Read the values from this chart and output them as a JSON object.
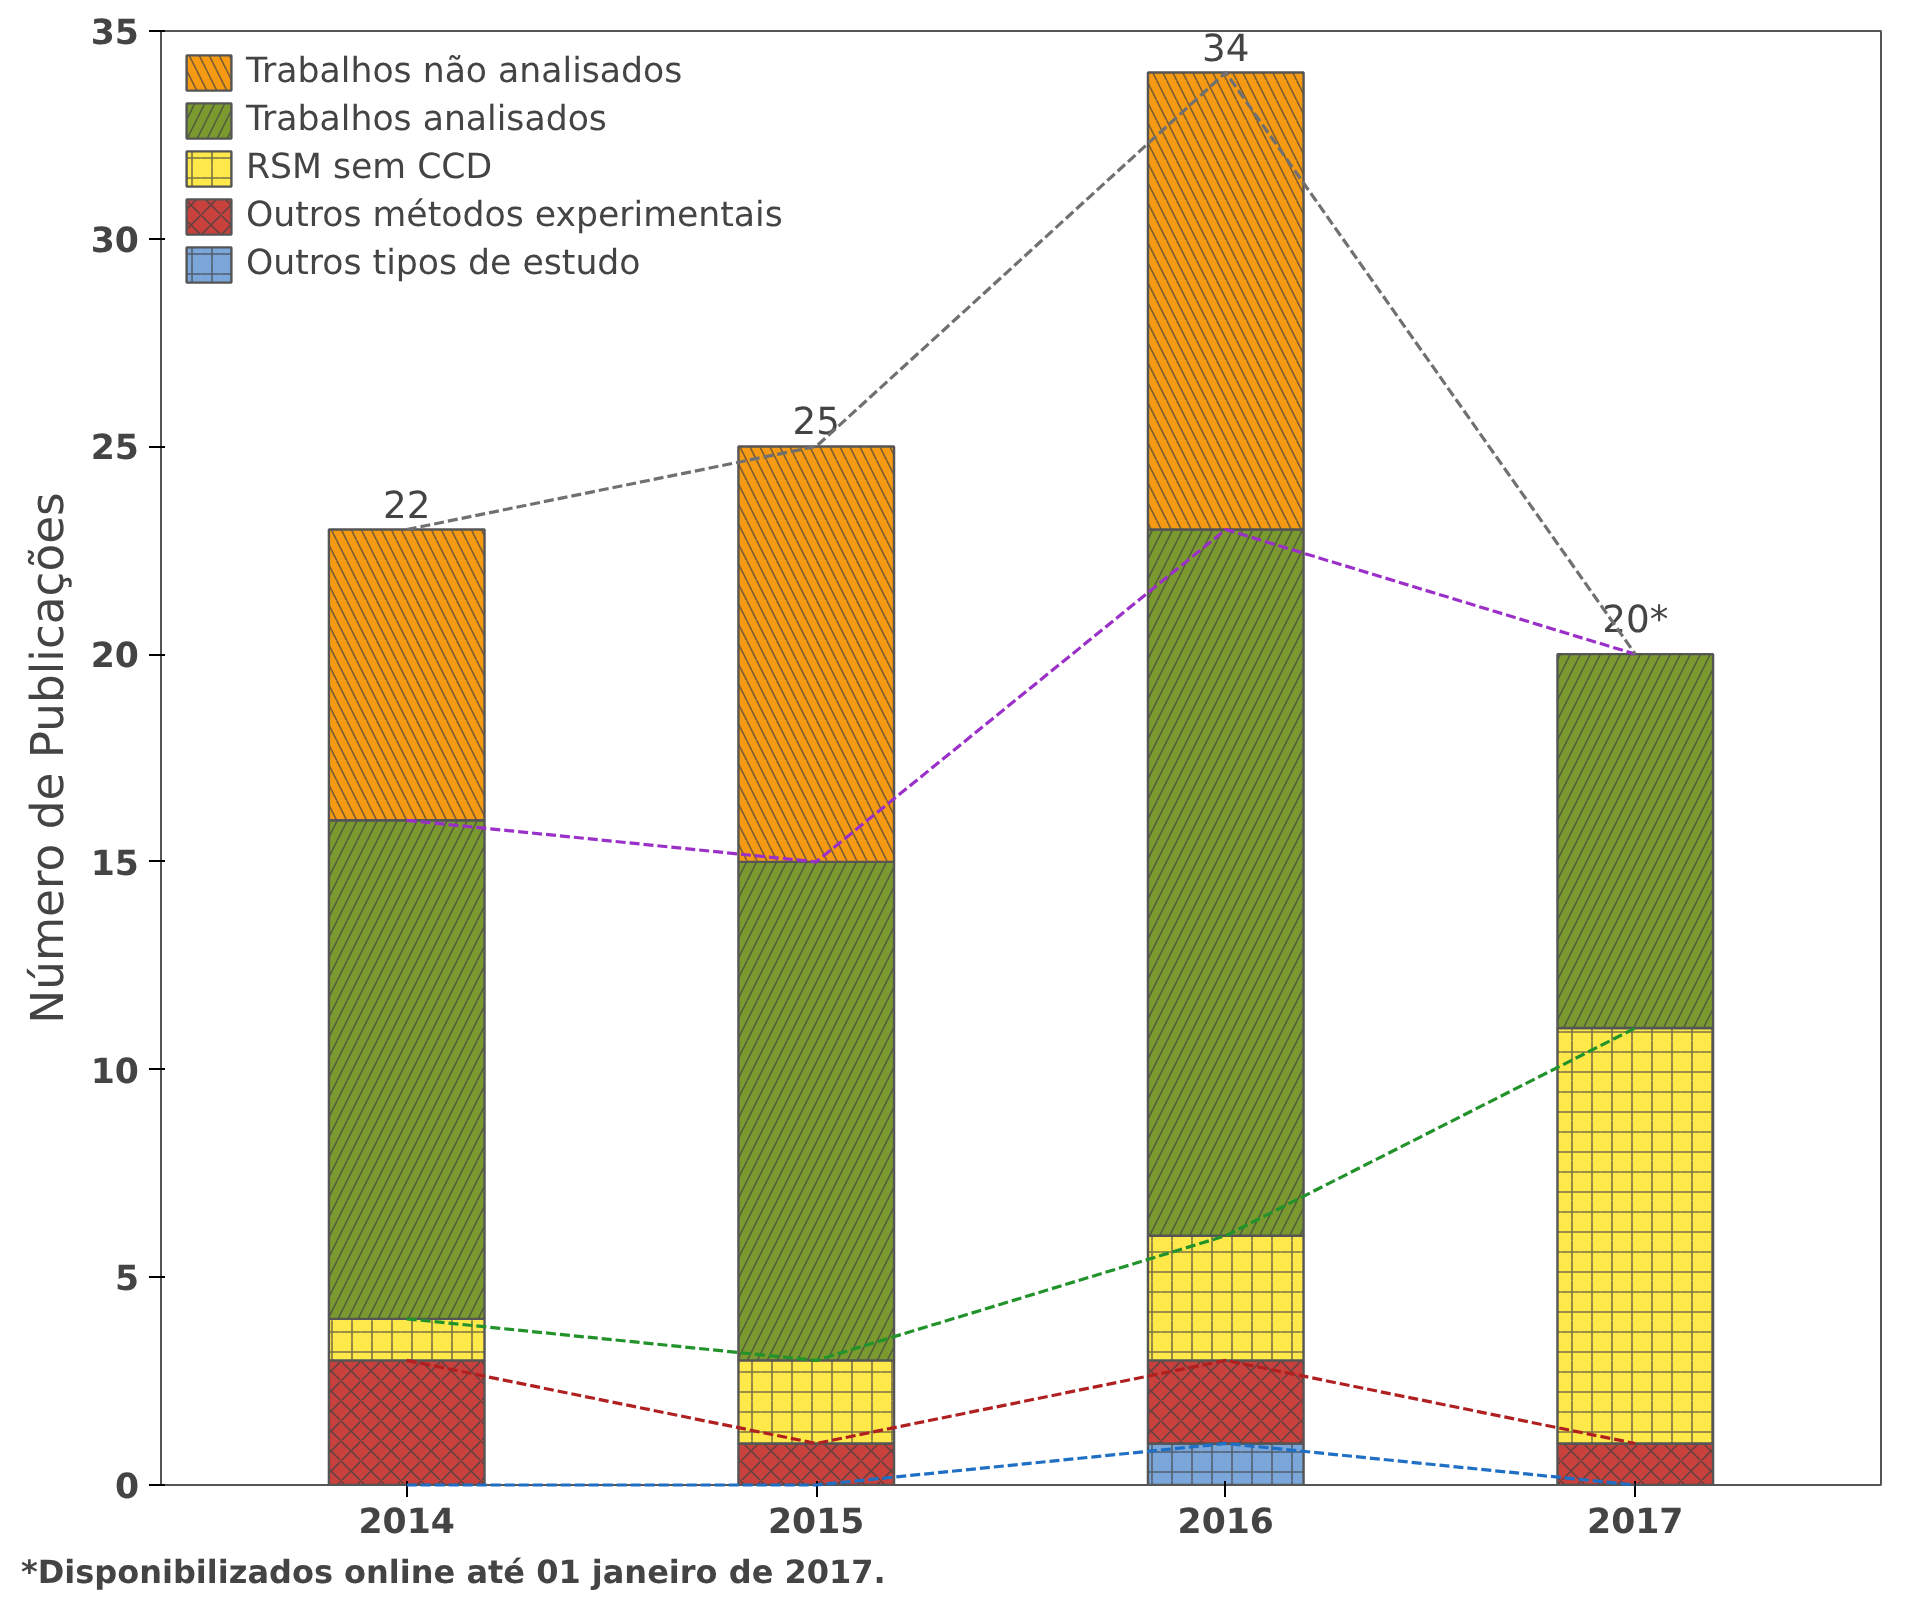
{
  "chart_data": {
    "type": "bar",
    "stacked": true,
    "ylabel": "Número de Publicações",
    "categories": [
      "2014",
      "2015",
      "2016",
      "2017"
    ],
    "series": [
      {
        "name": "Outros tipos de estudo",
        "color": "#7aa6d9",
        "values": [
          0,
          0,
          1,
          0
        ]
      },
      {
        "name": "Outros métodos experimentais",
        "color": "#c8413d",
        "values": [
          3,
          1,
          2,
          1
        ]
      },
      {
        "name": "RSM sem CCD",
        "color": "#ffe94a",
        "values": [
          1,
          2,
          3,
          10
        ]
      },
      {
        "name": "Trabalhos analisados",
        "color": "#7a9a30",
        "values": [
          12,
          12,
          17,
          9
        ]
      },
      {
        "name": "Trabalhos não analisados",
        "color": "#f59a12",
        "values": [
          7,
          10,
          11,
          0
        ]
      },
      {
        "type": "line",
        "color": "#1f6fc4",
        "line_style": "dashed",
        "values": [
          0,
          0,
          1,
          0
        ]
      },
      {
        "type": "line",
        "color": "#b02020",
        "line_style": "dashed",
        "values": [
          3,
          1,
          3,
          1
        ]
      },
      {
        "type": "line",
        "color": "#22922a",
        "line_style": "dashed",
        "values": [
          4,
          3,
          6,
          11
        ]
      },
      {
        "type": "line",
        "color": "#9b30c8",
        "line_style": "dashed",
        "values": [
          16,
          15,
          23,
          20
        ]
      },
      {
        "type": "line",
        "color": "#707070",
        "line_style": "dashed",
        "values": [
          23,
          25,
          34,
          20
        ]
      }
    ],
    "totals": [
      "22",
      "25",
      "34",
      "20*"
    ],
    "ylim": [
      0,
      35
    ],
    "yticks": [
      0,
      5,
      10,
      15,
      20,
      25,
      30,
      35
    ],
    "grid": false,
    "legend": "top left",
    "annotations": [
      "*Disponibilizados online até 01 janeiro de 2017."
    ]
  }
}
